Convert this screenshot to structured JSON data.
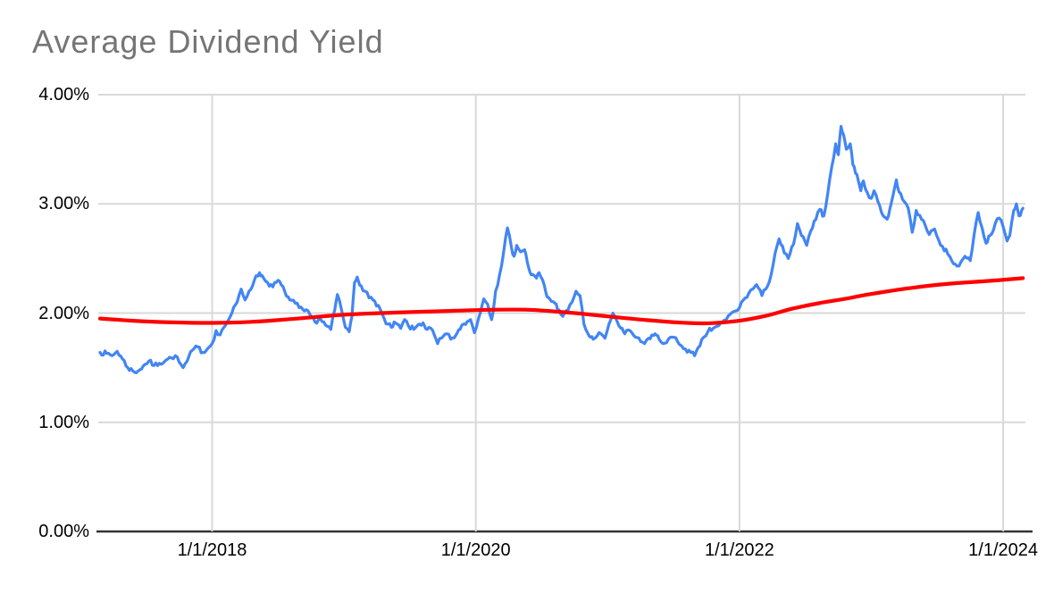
{
  "chart_data": {
    "type": "line",
    "title": "Average Dividend Yield",
    "xlabel": "",
    "ylabel": "",
    "grid": true,
    "legend": "none",
    "x_axis": {
      "tick_labels": [
        "1/1/2018",
        "1/1/2020",
        "1/1/2022",
        "1/1/2024"
      ],
      "tick_years": [
        2018,
        2020,
        2022,
        2024
      ],
      "range_years": [
        2017.15,
        2024.17
      ]
    },
    "y_axis": {
      "tick_labels": [
        "0.00%",
        "1.00%",
        "2.00%",
        "3.00%",
        "4.00%"
      ],
      "tick_values": [
        0,
        1,
        2,
        3,
        4
      ],
      "range": [
        0,
        4
      ],
      "unit": "percent"
    },
    "series": [
      {
        "id": "blue-daily-dividend-yield",
        "color": "#4285f4",
        "style": "jagged-daily",
        "points": [
          [
            2017.15,
            1.64
          ],
          [
            2017.2,
            1.63
          ],
          [
            2017.24,
            1.61
          ],
          [
            2017.28,
            1.65
          ],
          [
            2017.32,
            1.58
          ],
          [
            2017.36,
            1.5
          ],
          [
            2017.41,
            1.46
          ],
          [
            2017.45,
            1.48
          ],
          [
            2017.49,
            1.53
          ],
          [
            2017.52,
            1.56
          ],
          [
            2017.56,
            1.52
          ],
          [
            2017.6,
            1.54
          ],
          [
            2017.65,
            1.57
          ],
          [
            2017.69,
            1.59
          ],
          [
            2017.72,
            1.61
          ],
          [
            2017.75,
            1.55
          ],
          [
            2017.78,
            1.5
          ],
          [
            2017.81,
            1.56
          ],
          [
            2017.85,
            1.66
          ],
          [
            2017.89,
            1.69
          ],
          [
            2017.93,
            1.64
          ],
          [
            2017.97,
            1.68
          ],
          [
            2018.0,
            1.72
          ],
          [
            2018.03,
            1.84
          ],
          [
            2018.06,
            1.8
          ],
          [
            2018.09,
            1.87
          ],
          [
            2018.12,
            1.93
          ],
          [
            2018.15,
            2.0
          ],
          [
            2018.19,
            2.1
          ],
          [
            2018.22,
            2.22
          ],
          [
            2018.25,
            2.12
          ],
          [
            2018.28,
            2.2
          ],
          [
            2018.32,
            2.3
          ],
          [
            2018.36,
            2.37
          ],
          [
            2018.39,
            2.32
          ],
          [
            2018.42,
            2.28
          ],
          [
            2018.46,
            2.24
          ],
          [
            2018.5,
            2.3
          ],
          [
            2018.55,
            2.2
          ],
          [
            2018.59,
            2.12
          ],
          [
            2018.63,
            2.09
          ],
          [
            2018.66,
            2.05
          ],
          [
            2018.7,
            2.02
          ],
          [
            2018.74,
            1.99
          ],
          [
            2018.78,
            1.92
          ],
          [
            2018.82,
            1.95
          ],
          [
            2018.86,
            1.89
          ],
          [
            2018.9,
            1.85
          ],
          [
            2018.93,
            2.03
          ],
          [
            2018.95,
            2.17
          ],
          [
            2018.98,
            2.04
          ],
          [
            2019.01,
            1.87
          ],
          [
            2019.04,
            1.83
          ],
          [
            2019.06,
            1.97
          ],
          [
            2019.08,
            2.28
          ],
          [
            2019.1,
            2.33
          ],
          [
            2019.13,
            2.25
          ],
          [
            2019.16,
            2.2
          ],
          [
            2019.19,
            2.14
          ],
          [
            2019.22,
            2.12
          ],
          [
            2019.26,
            2.07
          ],
          [
            2019.29,
            1.99
          ],
          [
            2019.32,
            1.9
          ],
          [
            2019.36,
            1.87
          ],
          [
            2019.39,
            1.91
          ],
          [
            2019.43,
            1.86
          ],
          [
            2019.46,
            1.94
          ],
          [
            2019.49,
            1.88
          ],
          [
            2019.53,
            1.85
          ],
          [
            2019.56,
            1.89
          ],
          [
            2019.6,
            1.91
          ],
          [
            2019.63,
            1.85
          ],
          [
            2019.66,
            1.86
          ],
          [
            2019.71,
            1.72
          ],
          [
            2019.74,
            1.77
          ],
          [
            2019.78,
            1.81
          ],
          [
            2019.81,
            1.76
          ],
          [
            2019.85,
            1.8
          ],
          [
            2019.88,
            1.85
          ],
          [
            2019.91,
            1.9
          ],
          [
            2019.96,
            1.94
          ],
          [
            2019.99,
            1.82
          ],
          [
            2020.02,
            1.95
          ],
          [
            2020.06,
            2.13
          ],
          [
            2020.09,
            2.08
          ],
          [
            2020.12,
            1.94
          ],
          [
            2020.15,
            2.2
          ],
          [
            2020.18,
            2.35
          ],
          [
            2020.21,
            2.55
          ],
          [
            2020.24,
            2.78
          ],
          [
            2020.27,
            2.6
          ],
          [
            2020.29,
            2.52
          ],
          [
            2020.31,
            2.62
          ],
          [
            2020.34,
            2.56
          ],
          [
            2020.37,
            2.58
          ],
          [
            2020.4,
            2.42
          ],
          [
            2020.42,
            2.35
          ],
          [
            2020.46,
            2.32
          ],
          [
            2020.48,
            2.37
          ],
          [
            2020.52,
            2.25
          ],
          [
            2020.54,
            2.15
          ],
          [
            2020.56,
            2.13
          ],
          [
            2020.6,
            2.09
          ],
          [
            2020.63,
            2.03
          ],
          [
            2020.66,
            1.97
          ],
          [
            2020.7,
            2.03
          ],
          [
            2020.73,
            2.1
          ],
          [
            2020.76,
            2.2
          ],
          [
            2020.79,
            2.16
          ],
          [
            2020.82,
            1.9
          ],
          [
            2020.86,
            1.79
          ],
          [
            2020.89,
            1.76
          ],
          [
            2020.92,
            1.79
          ],
          [
            2020.95,
            1.81
          ],
          [
            2020.98,
            1.77
          ],
          [
            2021.01,
            1.9
          ],
          [
            2021.04,
            2.0
          ],
          [
            2021.07,
            1.93
          ],
          [
            2021.1,
            1.86
          ],
          [
            2021.13,
            1.81
          ],
          [
            2021.17,
            1.84
          ],
          [
            2021.21,
            1.78
          ],
          [
            2021.25,
            1.74
          ],
          [
            2021.28,
            1.72
          ],
          [
            2021.31,
            1.77
          ],
          [
            2021.36,
            1.81
          ],
          [
            2021.39,
            1.76
          ],
          [
            2021.42,
            1.72
          ],
          [
            2021.46,
            1.76
          ],
          [
            2021.49,
            1.78
          ],
          [
            2021.53,
            1.74
          ],
          [
            2021.56,
            1.7
          ],
          [
            2021.59,
            1.67
          ],
          [
            2021.63,
            1.64
          ],
          [
            2021.66,
            1.61
          ],
          [
            2021.7,
            1.7
          ],
          [
            2021.73,
            1.78
          ],
          [
            2021.76,
            1.83
          ],
          [
            2021.8,
            1.86
          ],
          [
            2021.83,
            1.88
          ],
          [
            2021.87,
            1.91
          ],
          [
            2021.9,
            1.94
          ],
          [
            2021.93,
            1.99
          ],
          [
            2021.97,
            2.02
          ],
          [
            2022.0,
            2.05
          ],
          [
            2022.03,
            2.12
          ],
          [
            2022.07,
            2.18
          ],
          [
            2022.1,
            2.22
          ],
          [
            2022.13,
            2.26
          ],
          [
            2022.17,
            2.16
          ],
          [
            2022.2,
            2.22
          ],
          [
            2022.24,
            2.35
          ],
          [
            2022.27,
            2.55
          ],
          [
            2022.3,
            2.68
          ],
          [
            2022.34,
            2.55
          ],
          [
            2022.37,
            2.5
          ],
          [
            2022.41,
            2.63
          ],
          [
            2022.44,
            2.82
          ],
          [
            2022.47,
            2.71
          ],
          [
            2022.51,
            2.62
          ],
          [
            2022.54,
            2.75
          ],
          [
            2022.58,
            2.86
          ],
          [
            2022.61,
            2.95
          ],
          [
            2022.64,
            2.89
          ],
          [
            2022.67,
            3.1
          ],
          [
            2022.7,
            3.34
          ],
          [
            2022.73,
            3.55
          ],
          [
            2022.75,
            3.45
          ],
          [
            2022.77,
            3.71
          ],
          [
            2022.79,
            3.63
          ],
          [
            2022.81,
            3.5
          ],
          [
            2022.84,
            3.55
          ],
          [
            2022.86,
            3.36
          ],
          [
            2022.89,
            3.27
          ],
          [
            2022.92,
            3.12
          ],
          [
            2022.94,
            3.21
          ],
          [
            2022.97,
            3.1
          ],
          [
            2023.0,
            3.05
          ],
          [
            2023.02,
            3.12
          ],
          [
            2023.05,
            3.02
          ],
          [
            2023.09,
            2.89
          ],
          [
            2023.12,
            2.86
          ],
          [
            2023.15,
            3.0
          ],
          [
            2023.19,
            3.22
          ],
          [
            2023.21,
            3.11
          ],
          [
            2023.25,
            3.02
          ],
          [
            2023.28,
            2.96
          ],
          [
            2023.31,
            2.74
          ],
          [
            2023.34,
            2.94
          ],
          [
            2023.38,
            2.86
          ],
          [
            2023.41,
            2.8
          ],
          [
            2023.44,
            2.72
          ],
          [
            2023.48,
            2.77
          ],
          [
            2023.51,
            2.67
          ],
          [
            2023.54,
            2.61
          ],
          [
            2023.58,
            2.54
          ],
          [
            2023.61,
            2.48
          ],
          [
            2023.65,
            2.43
          ],
          [
            2023.68,
            2.47
          ],
          [
            2023.71,
            2.52
          ],
          [
            2023.75,
            2.48
          ],
          [
            2023.78,
            2.72
          ],
          [
            2023.81,
            2.92
          ],
          [
            2023.84,
            2.78
          ],
          [
            2023.87,
            2.64
          ],
          [
            2023.9,
            2.71
          ],
          [
            2023.94,
            2.82
          ],
          [
            2023.97,
            2.87
          ],
          [
            2024.0,
            2.79
          ],
          [
            2024.03,
            2.66
          ],
          [
            2024.05,
            2.71
          ],
          [
            2024.08,
            2.94
          ],
          [
            2024.1,
            3.0
          ],
          [
            2024.12,
            2.89
          ],
          [
            2024.15,
            2.96
          ]
        ]
      },
      {
        "id": "red-smoothed-trend",
        "color": "#ff0000",
        "style": "smooth",
        "points": [
          [
            2017.15,
            1.95
          ],
          [
            2017.4,
            1.93
          ],
          [
            2017.7,
            1.915
          ],
          [
            2018.0,
            1.91
          ],
          [
            2018.3,
            1.92
          ],
          [
            2018.6,
            1.945
          ],
          [
            2019.0,
            1.985
          ],
          [
            2019.4,
            2.005
          ],
          [
            2019.8,
            2.02
          ],
          [
            2020.1,
            2.03
          ],
          [
            2020.4,
            2.03
          ],
          [
            2020.7,
            2.005
          ],
          [
            2021.0,
            1.97
          ],
          [
            2021.3,
            1.935
          ],
          [
            2021.6,
            1.91
          ],
          [
            2021.8,
            1.908
          ],
          [
            2022.0,
            1.93
          ],
          [
            2022.2,
            1.975
          ],
          [
            2022.4,
            2.04
          ],
          [
            2022.6,
            2.09
          ],
          [
            2022.8,
            2.13
          ],
          [
            2023.0,
            2.175
          ],
          [
            2023.3,
            2.23
          ],
          [
            2023.6,
            2.27
          ],
          [
            2023.9,
            2.295
          ],
          [
            2024.15,
            2.32
          ]
        ]
      }
    ]
  },
  "styles": {
    "title_color": "#757575",
    "axis_label_color": "#000000",
    "gridline_color": "#d9d9d9",
    "axis_line_color": "#333333",
    "background": "#ffffff"
  }
}
